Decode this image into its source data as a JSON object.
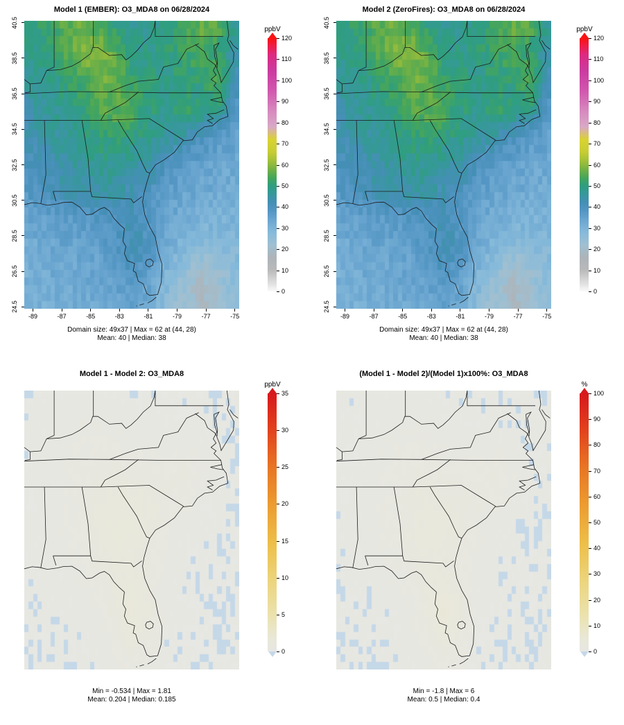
{
  "panels": [
    {
      "title": "Model 1 (EMBER): O3_MDA8 on 06/28/2024",
      "caption_line1": "Domain size: 49x37 | Max = 62 at (44, 28)",
      "caption_line2": "Mean: 40  |  Median: 38",
      "unit": "ppbV"
    },
    {
      "title": "Model 2 (ZeroFires): O3_MDA8 on 06/28/2024",
      "caption_line1": "Domain size: 49x37 | Max = 62 at (44, 28)",
      "caption_line2": "Mean: 40  |  Median: 38",
      "unit": "ppbV"
    },
    {
      "title": "Model 1 - Model 2: O3_MDA8",
      "caption_line1": "Min = -0.534 | Max = 1.81",
      "caption_line2": "Mean: 0.204  |  Median: 0.185",
      "unit": "ppbV"
    },
    {
      "title": "(Model 1 - Model 2)/(Model 1)x100%: O3_MDA8",
      "caption_line1": "Min = -1.8 | Max = 6",
      "caption_line2": "Mean: 0.5  |  Median: 0.4",
      "unit": "%"
    }
  ],
  "palettes": {
    "concentration": [
      [
        0,
        "#f8f8f8"
      ],
      [
        10,
        "#b9b9b9"
      ],
      [
        16,
        "#aeb4b9"
      ],
      [
        22,
        "#9fc0d2"
      ],
      [
        28,
        "#86bada"
      ],
      [
        33,
        "#6fa9d2"
      ],
      [
        38,
        "#5597c5"
      ],
      [
        42,
        "#458fb6"
      ],
      [
        46,
        "#37989c"
      ],
      [
        50,
        "#2f9e80"
      ],
      [
        54,
        "#47a659"
      ],
      [
        58,
        "#76b244"
      ],
      [
        62,
        "#a4c139"
      ],
      [
        66,
        "#c7cd34"
      ],
      [
        72,
        "#d9d332"
      ],
      [
        78,
        "#d8a9c6"
      ],
      [
        85,
        "#d78cc0"
      ],
      [
        95,
        "#d158ae"
      ],
      [
        105,
        "#cb3a9f"
      ],
      [
        112,
        "#dc2a83"
      ],
      [
        117,
        "#f01d40"
      ],
      [
        120,
        "#fb1212"
      ]
    ],
    "relative": [
      [
        0,
        "#e7e7e3"
      ],
      [
        0.05,
        "#e9e8d8"
      ],
      [
        0.14,
        "#ebe2ae"
      ],
      [
        0.28,
        "#ecd47b"
      ],
      [
        0.42,
        "#edbf49"
      ],
      [
        0.57,
        "#ec9c30"
      ],
      [
        0.72,
        "#e77424"
      ],
      [
        0.86,
        "#e2421d"
      ],
      [
        1,
        "#d7191c"
      ]
    ],
    "negative": "#c5d8e8"
  },
  "chart_data": [
    {
      "type": "heatmap",
      "title": "Model 1 (EMBER): O3_MDA8 on 06/28/2024",
      "units": "ppbV",
      "lon_ticks": [
        -89,
        -87,
        -85,
        -83,
        -81,
        -79,
        -77,
        -75
      ],
      "lat_ticks": [
        24.5,
        26.5,
        28.5,
        30.5,
        32.5,
        34.5,
        36.5,
        38.5,
        40.5
      ],
      "lon_range": [
        -89.6,
        -74.7
      ],
      "lat_range": [
        24.4,
        40.6
      ],
      "domain_size": "49x37",
      "stats": {
        "max": 62,
        "max_at": [
          44,
          28
        ],
        "mean": 40,
        "median": 38
      },
      "colorbar": {
        "unit": "ppbV",
        "min": 0,
        "max": 120,
        "ticks": [
          0,
          10,
          20,
          30,
          40,
          50,
          60,
          70,
          80,
          90,
          100,
          110,
          120
        ]
      },
      "approx_grid": {
        "rows": 11,
        "cols": 13,
        "order": "north_to_south",
        "values": [
          [
            50,
            52,
            55,
            58,
            54,
            50,
            48,
            47,
            50,
            53,
            56,
            55,
            46
          ],
          [
            48,
            50,
            53,
            58,
            61,
            56,
            50,
            48,
            50,
            52,
            55,
            50,
            44
          ],
          [
            46,
            47,
            50,
            53,
            56,
            58,
            52,
            50,
            48,
            50,
            50,
            56,
            42
          ],
          [
            44,
            46,
            48,
            50,
            54,
            56,
            55,
            50,
            48,
            52,
            50,
            48,
            38
          ],
          [
            42,
            44,
            46,
            48,
            50,
            52,
            50,
            48,
            46,
            44,
            40,
            37,
            35
          ],
          [
            40,
            42,
            44,
            46,
            48,
            48,
            46,
            44,
            40,
            37,
            35,
            34,
            33
          ],
          [
            38,
            40,
            42,
            43,
            44,
            44,
            42,
            40,
            36,
            34,
            33,
            32,
            32
          ],
          [
            34,
            35,
            36,
            37,
            38,
            40,
            42,
            38,
            34,
            32,
            31,
            30,
            30
          ],
          [
            32,
            33,
            34,
            34,
            35,
            38,
            42,
            40,
            33,
            28,
            26,
            27,
            28
          ],
          [
            31,
            32,
            33,
            33,
            34,
            36,
            38,
            35,
            29,
            24,
            20,
            23,
            27
          ],
          [
            30,
            31,
            32,
            32,
            33,
            34,
            35,
            33,
            27,
            22,
            18,
            22,
            26
          ]
        ]
      }
    },
    {
      "type": "heatmap",
      "title": "Model 2 (ZeroFires): O3_MDA8 on 06/28/2024",
      "units": "ppbV",
      "lon_ticks": [
        -89,
        -87,
        -85,
        -83,
        -81,
        -79,
        -77,
        -75
      ],
      "lat_ticks": [
        24.5,
        26.5,
        28.5,
        30.5,
        32.5,
        34.5,
        36.5,
        38.5,
        40.5
      ],
      "lon_range": [
        -89.6,
        -74.7
      ],
      "lat_range": [
        24.4,
        40.6
      ],
      "domain_size": "49x37",
      "stats": {
        "max": 62,
        "max_at": [
          44,
          28
        ],
        "mean": 40,
        "median": 38
      },
      "colorbar": {
        "unit": "ppbV",
        "min": 0,
        "max": 120,
        "ticks": [
          0,
          10,
          20,
          30,
          40,
          50,
          60,
          70,
          80,
          90,
          100,
          110,
          120
        ]
      },
      "approx_grid": {
        "rows": 11,
        "cols": 13,
        "order": "north_to_south",
        "values": [
          [
            50,
            52,
            55,
            58,
            54,
            50,
            48,
            47,
            50,
            53,
            56,
            55,
            46
          ],
          [
            48,
            50,
            53,
            58,
            61,
            56,
            50,
            48,
            50,
            52,
            55,
            50,
            44
          ],
          [
            46,
            47,
            50,
            53,
            56,
            58,
            52,
            50,
            48,
            50,
            50,
            56,
            42
          ],
          [
            44,
            46,
            48,
            50,
            54,
            56,
            55,
            50,
            48,
            52,
            50,
            48,
            38
          ],
          [
            42,
            44,
            46,
            48,
            50,
            52,
            50,
            48,
            46,
            44,
            40,
            37,
            35
          ],
          [
            40,
            42,
            44,
            46,
            48,
            48,
            46,
            44,
            40,
            37,
            35,
            34,
            33
          ],
          [
            38,
            40,
            42,
            43,
            44,
            44,
            42,
            40,
            36,
            34,
            33,
            32,
            32
          ],
          [
            34,
            35,
            36,
            37,
            38,
            40,
            42,
            38,
            34,
            32,
            31,
            30,
            30
          ],
          [
            32,
            33,
            34,
            34,
            35,
            38,
            42,
            40,
            33,
            28,
            26,
            27,
            28
          ],
          [
            31,
            32,
            33,
            33,
            34,
            36,
            38,
            35,
            29,
            24,
            20,
            23,
            27
          ],
          [
            30,
            31,
            32,
            32,
            33,
            34,
            35,
            33,
            27,
            22,
            18,
            22,
            26
          ]
        ]
      }
    },
    {
      "type": "heatmap",
      "title": "Model 1 - Model 2: O3_MDA8",
      "units": "ppbV",
      "lon_range": [
        -89.6,
        -74.7
      ],
      "lat_range": [
        24.4,
        40.6
      ],
      "stats": {
        "min": -0.534,
        "max": 1.81,
        "mean": 0.204,
        "median": 0.185
      },
      "colorbar": {
        "unit": "ppbV",
        "min": 0,
        "max": 35,
        "ticks": [
          0,
          5,
          10,
          15,
          20,
          25,
          30,
          35
        ]
      },
      "approx_grid": {
        "rows": 11,
        "cols": 13,
        "order": "north_to_south",
        "values": [
          [
            0.1,
            0.1,
            0.15,
            0.2,
            0.2,
            0.15,
            0.1,
            0.1,
            0.1,
            0.1,
            0.1,
            0.05,
            0.05
          ],
          [
            0.1,
            0.15,
            0.2,
            0.3,
            0.3,
            0.25,
            0.2,
            0.15,
            0.15,
            0.1,
            0.1,
            0.05,
            0.05
          ],
          [
            0.1,
            0.15,
            0.25,
            0.4,
            0.5,
            0.45,
            0.35,
            0.3,
            0.3,
            0.3,
            0.2,
            0.1,
            0.05
          ],
          [
            0.1,
            0.2,
            0.3,
            0.5,
            0.7,
            0.8,
            0.7,
            0.6,
            0.6,
            0.8,
            0.4,
            0.1,
            0.05
          ],
          [
            0.1,
            0.2,
            0.3,
            0.5,
            0.8,
            1.1,
            1.0,
            0.9,
            0.7,
            0.5,
            0.2,
            0.1,
            0.05
          ],
          [
            0.1,
            0.15,
            0.3,
            0.5,
            0.9,
            1.3,
            1.2,
            0.9,
            0.4,
            0.2,
            0.1,
            0.05,
            0.05
          ],
          [
            0.1,
            0.15,
            0.25,
            0.4,
            0.8,
            1.0,
            0.9,
            0.6,
            0.3,
            0.1,
            0.1,
            0.05,
            0.05
          ],
          [
            0.05,
            0.1,
            0.15,
            0.3,
            0.5,
            0.9,
            1.1,
            0.7,
            0.2,
            0.1,
            0.05,
            0.05,
            0.05
          ],
          [
            0.05,
            0.05,
            0.1,
            0.15,
            0.3,
            0.8,
            1.5,
            0.9,
            0.2,
            0.1,
            0.05,
            0.05,
            0.05
          ],
          [
            0.05,
            0.05,
            0.05,
            0.1,
            0.2,
            0.5,
            1.0,
            0.6,
            0.1,
            0.05,
            0.05,
            0.05,
            0.05
          ],
          [
            0.05,
            0.05,
            0.05,
            0.05,
            0.1,
            0.3,
            0.5,
            0.3,
            0.1,
            0.05,
            0.05,
            0.05,
            0.05
          ]
        ]
      }
    },
    {
      "type": "heatmap",
      "title": "(Model 1 - Model 2)/(Model 1)x100%: O3_MDA8",
      "units": "%",
      "lon_range": [
        -89.6,
        -74.7
      ],
      "lat_range": [
        24.4,
        40.6
      ],
      "stats": {
        "min": -1.8,
        "max": 6,
        "mean": 0.5,
        "median": 0.4
      },
      "colorbar": {
        "unit": "%",
        "min": 0,
        "max": 100,
        "ticks": [
          0,
          10,
          20,
          30,
          40,
          50,
          60,
          70,
          80,
          90,
          100
        ]
      },
      "approx_grid": {
        "rows": 11,
        "cols": 13,
        "order": "north_to_south",
        "values": [
          [
            0.3,
            0.3,
            0.4,
            0.5,
            0.5,
            0.4,
            0.3,
            0.3,
            0.3,
            0.3,
            0.3,
            0.2,
            0.2
          ],
          [
            0.3,
            0.4,
            0.5,
            0.8,
            0.8,
            0.7,
            0.5,
            0.4,
            0.4,
            0.3,
            0.3,
            0.2,
            0.2
          ],
          [
            0.3,
            0.4,
            0.7,
            1.0,
            1.3,
            1.2,
            0.9,
            0.8,
            0.8,
            0.8,
            0.5,
            0.3,
            0.2
          ],
          [
            0.3,
            0.5,
            0.8,
            1.3,
            1.8,
            2.0,
            1.8,
            1.5,
            1.5,
            2.0,
            1.0,
            0.3,
            0.2
          ],
          [
            0.3,
            0.5,
            0.8,
            1.3,
            2.0,
            2.7,
            2.5,
            2.2,
            1.8,
            1.3,
            0.5,
            0.3,
            0.2
          ],
          [
            0.3,
            0.4,
            0.8,
            1.3,
            2.2,
            3.2,
            3.0,
            2.2,
            1.0,
            0.5,
            0.3,
            0.2,
            0.2
          ],
          [
            0.3,
            0.4,
            0.7,
            1.0,
            2.0,
            2.5,
            2.2,
            1.5,
            0.8,
            0.3,
            0.3,
            0.2,
            0.2
          ],
          [
            0.2,
            0.3,
            0.4,
            0.8,
            1.3,
            2.5,
            3.0,
            1.8,
            0.5,
            0.3,
            0.2,
            0.2,
            0.2
          ],
          [
            0.2,
            0.2,
            0.3,
            0.4,
            0.8,
            2.2,
            5.0,
            2.5,
            0.5,
            0.3,
            0.2,
            0.2,
            0.2
          ],
          [
            0.2,
            0.2,
            0.2,
            0.3,
            0.5,
            1.4,
            3.0,
            1.7,
            0.3,
            0.2,
            0.2,
            0.2,
            0.2
          ],
          [
            0.2,
            0.2,
            0.2,
            0.2,
            0.3,
            0.8,
            1.4,
            0.8,
            0.3,
            0.2,
            0.2,
            0.2,
            0.2
          ]
        ]
      }
    }
  ]
}
